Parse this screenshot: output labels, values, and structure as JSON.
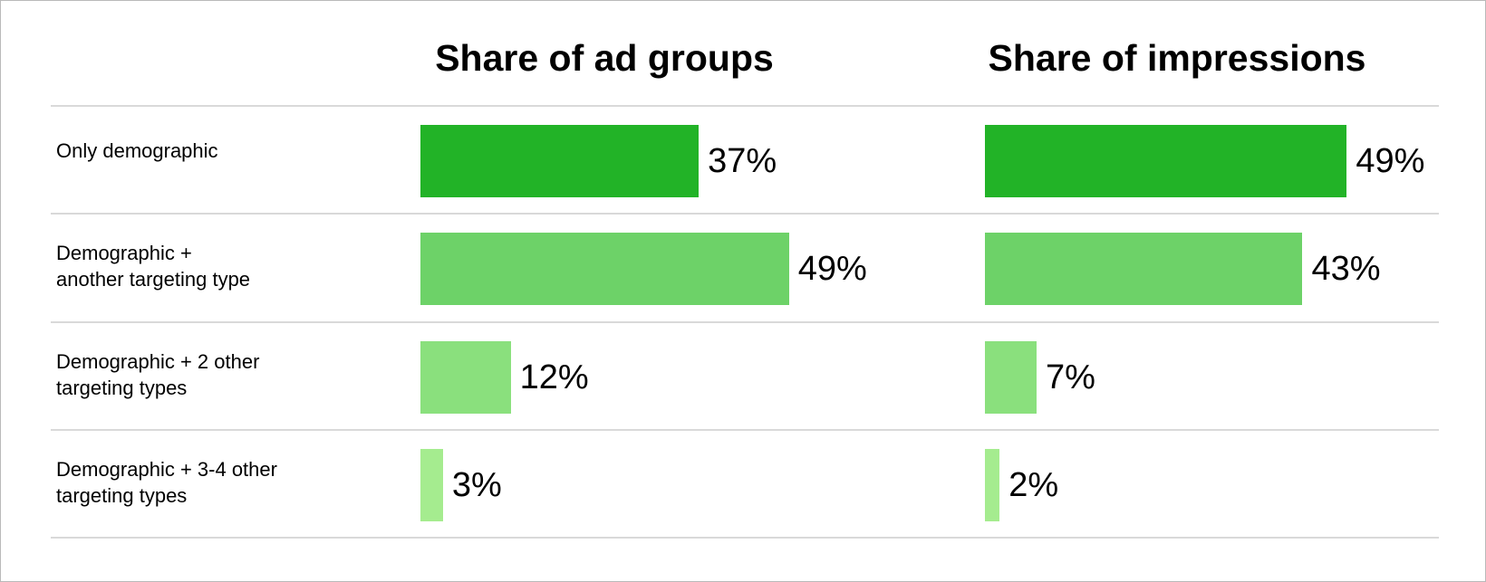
{
  "chart_data": {
    "type": "bar",
    "orientation": "horizontal",
    "categories": [
      "Only demographic",
      "Demographic +\nanother targeting type",
      "Demographic + 2 other\ntargeting types",
      "Demographic + 3-4 other\ntargeting types"
    ],
    "series": [
      {
        "name": "Share of ad groups",
        "values": [
          37,
          49,
          12,
          3
        ]
      },
      {
        "name": "Share of impressions",
        "values": [
          49,
          43,
          7,
          2
        ]
      }
    ],
    "value_labels": [
      [
        "37%",
        "49%",
        "12%",
        "3%"
      ],
      [
        "49%",
        "43%",
        "7%",
        "2%"
      ]
    ],
    "unit": "%",
    "row_colors": [
      "#22b327",
      "#6dd268",
      "#8ae07d",
      "#a5ec8f"
    ],
    "grid": false,
    "legend": "none"
  }
}
